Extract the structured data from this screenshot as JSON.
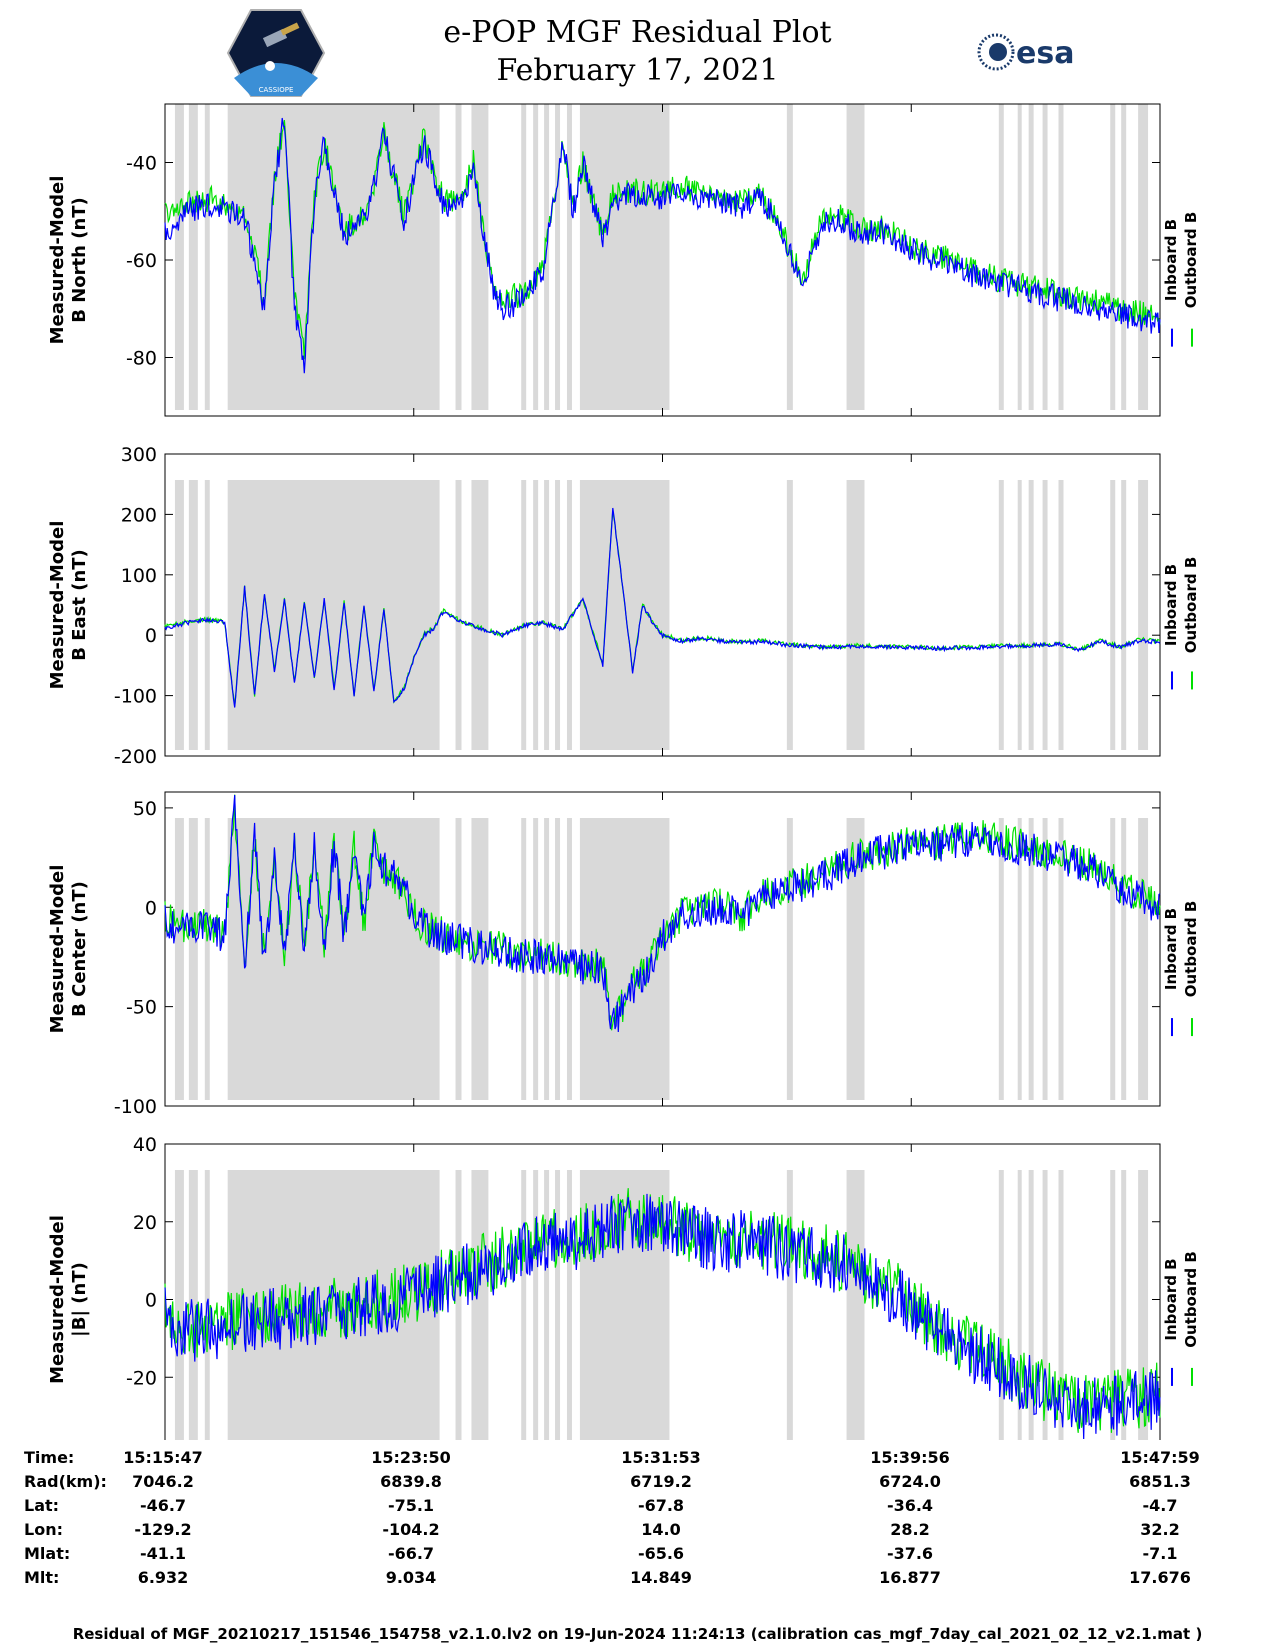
{
  "title_line1": "e-POP MGF Residual Plot",
  "title_line2": "February 17, 2021",
  "logos": [
    {
      "name": "cassiope-mission-logo",
      "text": "CASSIOPE"
    },
    {
      "name": "esa-logo",
      "text": "esa"
    }
  ],
  "colors": {
    "inboard": "#0000ff",
    "outboard": "#00e000",
    "shade": "#d9d9d9"
  },
  "legend": {
    "inboard": "Inboard B",
    "outboard": "Outboard B"
  },
  "chart_data": [
    {
      "type": "line",
      "ylabel_line1": "Measured-Model",
      "ylabel_line2": "B North (nT)",
      "ylim": [
        -92,
        -28
      ],
      "yticks": [
        -80,
        -60,
        -40
      ],
      "tick_labels": [
        "-80",
        "-60",
        "-40"
      ],
      "x": [
        0,
        2,
        4,
        5,
        6,
        8,
        10,
        11,
        12,
        13,
        14,
        15,
        16,
        18,
        20,
        21,
        22,
        24,
        25,
        26,
        28,
        30,
        31,
        32,
        33,
        34,
        36,
        38,
        40,
        41,
        42,
        44,
        45,
        46,
        48,
        50,
        52,
        54,
        56,
        58,
        60,
        62,
        64,
        66,
        68,
        70,
        72,
        74,
        76,
        78,
        80,
        82,
        84,
        86,
        88,
        90,
        92,
        94,
        96,
        98,
        100
      ],
      "inboard_y": [
        -55,
        -50,
        -49,
        -48,
        -50,
        -51,
        -70,
        -45,
        -30,
        -70,
        -82,
        -48,
        -36,
        -55,
        -52,
        -45,
        -34,
        -52,
        -44,
        -36,
        -49,
        -48,
        -40,
        -55,
        -66,
        -70,
        -68,
        -62,
        -36,
        -50,
        -40,
        -56,
        -48,
        -47,
        -47,
        -47,
        -46,
        -47,
        -48,
        -49,
        -47,
        -55,
        -65,
        -53,
        -52,
        -55,
        -54,
        -57,
        -59,
        -60,
        -62,
        -64,
        -65,
        -66,
        -67,
        -68,
        -69,
        -70,
        -71,
        -72,
        -73
      ],
      "outboard_y": [
        -51,
        -48,
        -48,
        -47,
        -49,
        -50,
        -68,
        -44,
        -30,
        -68,
        -80,
        -47,
        -36,
        -54,
        -51,
        -44,
        -34,
        -51,
        -43,
        -35,
        -48,
        -47,
        -40,
        -54,
        -65,
        -68,
        -67,
        -61,
        -35,
        -49,
        -40,
        -55,
        -47,
        -46,
        -46,
        -46,
        -45,
        -46,
        -47,
        -48,
        -46,
        -54,
        -64,
        -52,
        -51,
        -54,
        -53,
        -56,
        -58,
        -59,
        -61,
        -63,
        -64,
        -65,
        -66,
        -67,
        -68,
        -69,
        -70,
        -71,
        -72
      ],
      "noise_amp": 3
    },
    {
      "type": "line",
      "ylabel_line1": "Measured-Model",
      "ylabel_line2": "B East (nT)",
      "ylim": [
        -200,
        300
      ],
      "yticks": [
        -200,
        -100,
        0,
        100,
        200,
        300
      ],
      "tick_labels": [
        "-200",
        "-100",
        "0",
        "100",
        "200",
        "300"
      ],
      "x": [
        0,
        2,
        4,
        6,
        7,
        8,
        9,
        10,
        11,
        12,
        13,
        14,
        15,
        16,
        17,
        18,
        19,
        20,
        21,
        22,
        23,
        24,
        25,
        26,
        27,
        28,
        30,
        32,
        34,
        36,
        38,
        40,
        42,
        44,
        45,
        46,
        47,
        48,
        49,
        50,
        52,
        54,
        56,
        58,
        60,
        62,
        66,
        70,
        74,
        78,
        82,
        86,
        90,
        92,
        94,
        96,
        98,
        100
      ],
      "inboard_y": [
        10,
        20,
        25,
        22,
        -120,
        80,
        -100,
        70,
        -60,
        60,
        -80,
        55,
        -70,
        60,
        -90,
        55,
        -100,
        50,
        -95,
        45,
        -110,
        -90,
        -40,
        0,
        10,
        40,
        20,
        10,
        0,
        15,
        20,
        10,
        60,
        -50,
        210,
        80,
        -60,
        50,
        20,
        0,
        -10,
        -5,
        -10,
        -12,
        -10,
        -15,
        -20,
        -18,
        -20,
        -22,
        -20,
        -18,
        -15,
        -25,
        -10,
        -20,
        -8,
        -12
      ],
      "outboard_y": [
        14,
        22,
        26,
        23,
        -118,
        80,
        -98,
        70,
        -58,
        60,
        -78,
        55,
        -68,
        60,
        -88,
        55,
        -98,
        50,
        -93,
        45,
        -108,
        -88,
        -38,
        2,
        12,
        41,
        21,
        11,
        1,
        16,
        21,
        11,
        61,
        -48,
        208,
        80,
        -58,
        51,
        21,
        1,
        -9,
        -4,
        -9,
        -11,
        -9,
        -14,
        -19,
        -17,
        -19,
        -21,
        -19,
        -17,
        -14,
        -24,
        -9,
        -19,
        -7,
        -11
      ],
      "noise_amp": 4
    },
    {
      "type": "line",
      "ylabel_line1": "Measured-Model",
      "ylabel_line2": "B Center (nT)",
      "ylim": [
        -100,
        58
      ],
      "yticks": [
        -100,
        -50,
        0,
        50
      ],
      "tick_labels": [
        "-100",
        "-50",
        "0",
        "50"
      ],
      "x": [
        0,
        2,
        4,
        6,
        7,
        8,
        9,
        10,
        11,
        12,
        13,
        14,
        15,
        16,
        17,
        18,
        19,
        20,
        21,
        22,
        23,
        24,
        25,
        26,
        28,
        30,
        32,
        34,
        36,
        38,
        40,
        42,
        44,
        45,
        46,
        47,
        48,
        49,
        50,
        52,
        54,
        56,
        58,
        60,
        62,
        66,
        70,
        74,
        78,
        82,
        86,
        90,
        94,
        96,
        98,
        100
      ],
      "inboard_y": [
        -8,
        -12,
        -10,
        -15,
        50,
        -30,
        35,
        -30,
        25,
        -25,
        30,
        -20,
        30,
        -20,
        32,
        -15,
        30,
        -10,
        35,
        20,
        15,
        10,
        -5,
        -10,
        -15,
        -18,
        -20,
        -22,
        -25,
        -25,
        -28,
        -30,
        -30,
        -60,
        -50,
        -40,
        -35,
        -25,
        -15,
        -5,
        -2,
        0,
        -5,
        5,
        8,
        15,
        25,
        30,
        32,
        35,
        30,
        25,
        18,
        10,
        5,
        0
      ],
      "outboard_y": [
        -6,
        -10,
        -9,
        -14,
        50,
        -29,
        35,
        -29,
        25,
        -24,
        30,
        -19,
        30,
        -19,
        32,
        -14,
        30,
        -9,
        35,
        20,
        15,
        10,
        -4,
        -9,
        -14,
        -17,
        -19,
        -21,
        -24,
        -24,
        -27,
        -29,
        -29,
        -59,
        -49,
        -39,
        -34,
        -24,
        -14,
        -4,
        -1,
        1,
        -4,
        6,
        9,
        16,
        26,
        31,
        33,
        36,
        31,
        26,
        19,
        11,
        6,
        1
      ],
      "noise_amp": 10
    },
    {
      "type": "line",
      "ylabel_line1": "Measured-Model",
      "ylabel_line2": "|B| (nT)",
      "ylim": [
        -40,
        40
      ],
      "yticks": [
        -40,
        -20,
        0,
        20,
        40
      ],
      "tick_labels": [
        "-40",
        "-20",
        "0",
        "20",
        "40"
      ],
      "x": [
        0,
        2,
        4,
        6,
        8,
        10,
        12,
        14,
        16,
        18,
        20,
        22,
        24,
        26,
        28,
        30,
        32,
        34,
        36,
        38,
        40,
        42,
        44,
        46,
        48,
        50,
        52,
        54,
        56,
        58,
        60,
        62,
        64,
        66,
        68,
        70,
        72,
        74,
        76,
        78,
        80,
        82,
        84,
        86,
        88,
        90,
        92,
        94,
        96,
        98,
        100
      ],
      "inboard_y": [
        -5,
        -8,
        -8,
        -7,
        -6,
        -5,
        -5,
        -4,
        -4,
        -3,
        -2,
        -1,
        0,
        2,
        4,
        6,
        8,
        10,
        12,
        15,
        14,
        16,
        18,
        20,
        20,
        19,
        17,
        16,
        15,
        15,
        14,
        13,
        12,
        11,
        9,
        6,
        3,
        0,
        -4,
        -8,
        -12,
        -15,
        -18,
        -21,
        -24,
        -26,
        -28,
        -28,
        -27,
        -26,
        -25
      ],
      "outboard_y": [
        -4,
        -7,
        -7,
        -6,
        -5,
        -4,
        -4,
        -3,
        -3,
        -2,
        -1,
        0,
        1,
        3,
        5,
        7,
        9,
        11,
        13,
        16,
        15,
        17,
        19,
        21,
        21,
        20,
        18,
        17,
        16,
        16,
        15,
        14,
        13,
        12,
        10,
        7,
        4,
        1,
        -3,
        -7,
        -11,
        -14,
        -17,
        -20,
        -23,
        -25,
        -27,
        -27,
        -26,
        -25,
        -24
      ],
      "noise_amp": 9
    }
  ],
  "table": {
    "row_labels": [
      "Time:",
      "Rad(km):",
      "Lat:",
      "Lon:",
      "Mlat:",
      "Mlt:"
    ],
    "columns": [
      [
        "15:15:47",
        "7046.2",
        "-46.7",
        "-129.2",
        "-41.1",
        "6.932"
      ],
      [
        "15:23:50",
        "6839.8",
        "-75.1",
        "-104.2",
        "-66.7",
        "9.034"
      ],
      [
        "15:31:53",
        "6719.2",
        "-67.8",
        "14.0",
        "-65.6",
        "14.849"
      ],
      [
        "15:39:56",
        "6724.0",
        "-36.4",
        "28.2",
        "-37.6",
        "16.877"
      ],
      [
        "15:47:59",
        "6851.3",
        "-4.7",
        "32.2",
        "-7.1",
        "17.676"
      ]
    ]
  },
  "footer": "Residual of MGF_20210217_151546_154758_v2.1.0.lv2 on 19-Jun-2024 11:24:13 (calibration cas_mgf_7day_cal_2021_02_12_v2.1.mat )"
}
